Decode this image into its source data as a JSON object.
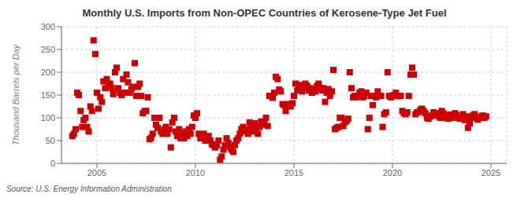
{
  "chart_data": {
    "type": "scatter",
    "title": "Monthly U.S. Imports from Non-OPEC Countries of Kerosene-Type Jet Fuel",
    "ylabel": "Thousand Barrels per Day",
    "annotation": "Source: U.S. Energy Information Administration",
    "color": "#cc0000",
    "marker": "square",
    "grid": true,
    "xlim": [
      2003.2,
      2025.8
    ],
    "ylim": [
      0,
      300
    ],
    "xticks": [
      2005,
      2010,
      2015,
      2020,
      2025
    ],
    "yticks": [
      0,
      50,
      100,
      150,
      200,
      250,
      300
    ],
    "x": [
      2003.75,
      2003.83,
      2003.92,
      2004.0,
      2004.08,
      2004.17,
      2004.25,
      2004.33,
      2004.42,
      2004.5,
      2004.58,
      2004.67,
      2004.75,
      2004.83,
      2004.92,
      2005.0,
      2005.08,
      2005.17,
      2005.25,
      2005.33,
      2005.42,
      2005.5,
      2005.58,
      2005.67,
      2005.75,
      2005.83,
      2005.92,
      2006.0,
      2006.08,
      2006.17,
      2006.25,
      2006.33,
      2006.42,
      2006.5,
      2006.58,
      2006.67,
      2006.75,
      2006.83,
      2006.92,
      2007.0,
      2007.08,
      2007.17,
      2007.25,
      2007.33,
      2007.42,
      2007.5,
      2007.58,
      2007.67,
      2007.75,
      2007.83,
      2007.92,
      2008.0,
      2008.08,
      2008.17,
      2008.25,
      2008.33,
      2008.42,
      2008.5,
      2008.58,
      2008.67,
      2008.75,
      2008.83,
      2008.92,
      2009.0,
      2009.08,
      2009.17,
      2009.25,
      2009.33,
      2009.42,
      2009.5,
      2009.58,
      2009.67,
      2009.75,
      2009.83,
      2009.92,
      2010.0,
      2010.08,
      2010.17,
      2010.25,
      2010.33,
      2010.42,
      2010.5,
      2010.58,
      2010.67,
      2010.75,
      2010.83,
      2010.92,
      2011.0,
      2011.08,
      2011.17,
      2011.25,
      2011.33,
      2011.42,
      2011.5,
      2011.58,
      2011.67,
      2011.75,
      2011.83,
      2011.92,
      2012.0,
      2012.08,
      2012.17,
      2012.25,
      2012.33,
      2012.42,
      2012.5,
      2012.58,
      2012.67,
      2012.75,
      2012.83,
      2012.92,
      2013.0,
      2013.08,
      2013.17,
      2013.25,
      2013.33,
      2013.42,
      2013.5,
      2013.58,
      2013.67,
      2013.75,
      2013.83,
      2013.92,
      2014.0,
      2014.08,
      2014.17,
      2014.25,
      2014.33,
      2014.42,
      2014.5,
      2014.58,
      2014.67,
      2014.75,
      2014.83,
      2014.92,
      2015.0,
      2015.08,
      2015.17,
      2015.25,
      2015.33,
      2015.42,
      2015.5,
      2015.58,
      2015.67,
      2015.75,
      2015.83,
      2015.92,
      2016.0,
      2016.08,
      2016.17,
      2016.25,
      2016.33,
      2016.42,
      2016.5,
      2016.58,
      2016.67,
      2016.75,
      2016.83,
      2016.92,
      2017.0,
      2017.08,
      2017.17,
      2017.25,
      2017.33,
      2017.42,
      2017.5,
      2017.58,
      2017.67,
      2017.75,
      2017.83,
      2017.92,
      2018.0,
      2018.08,
      2018.17,
      2018.25,
      2018.33,
      2018.42,
      2018.5,
      2018.58,
      2018.67,
      2018.75,
      2018.83,
      2018.92,
      2019.0,
      2019.08,
      2019.17,
      2019.25,
      2019.33,
      2019.42,
      2019.5,
      2019.58,
      2019.67,
      2019.75,
      2019.83,
      2019.92,
      2020.0,
      2020.08,
      2020.17,
      2020.25,
      2020.33,
      2020.42,
      2020.5,
      2020.58,
      2020.67,
      2020.75,
      2020.83,
      2020.92,
      2021.0,
      2021.08,
      2021.17,
      2021.25,
      2021.33,
      2021.42,
      2021.5,
      2021.58,
      2021.67,
      2021.75,
      2021.83,
      2021.92,
      2022.0,
      2022.08,
      2022.17,
      2022.25,
      2022.33,
      2022.42,
      2022.5,
      2022.58,
      2022.67,
      2022.75,
      2022.83,
      2022.92,
      2023.0,
      2023.08,
      2023.17,
      2023.25,
      2023.33,
      2023.42,
      2023.5,
      2023.58,
      2023.67,
      2023.75,
      2023.83,
      2023.92,
      2024.0,
      2024.08,
      2024.17,
      2024.25,
      2024.33,
      2024.42,
      2024.5,
      2024.58,
      2024.67,
      2024.75
    ],
    "values": [
      60,
      65,
      75,
      155,
      150,
      115,
      80,
      95,
      100,
      80,
      70,
      125,
      115,
      270,
      240,
      155,
      120,
      145,
      135,
      180,
      165,
      185,
      170,
      175,
      165,
      152,
      200,
      210,
      165,
      155,
      150,
      185,
      155,
      195,
      178,
      155,
      163,
      168,
      220,
      148,
      168,
      175,
      148,
      110,
      115,
      115,
      145,
      53,
      56,
      65,
      100,
      85,
      78,
      100,
      70,
      65,
      75,
      80,
      65,
      75,
      35,
      90,
      100,
      70,
      60,
      75,
      55,
      65,
      55,
      70,
      60,
      75,
      65,
      80,
      105,
      100,
      110,
      65,
      55,
      60,
      65,
      50,
      50,
      60,
      50,
      42,
      40,
      35,
      40,
      50,
      8,
      15,
      30,
      40,
      55,
      45,
      35,
      30,
      25,
      40,
      50,
      55,
      65,
      75,
      80,
      70,
      75,
      65,
      90,
      80,
      70,
      88,
      78,
      65,
      80,
      92,
      85,
      90,
      100,
      82,
      148,
      148,
      144,
      155,
      190,
      185,
      162,
      158,
      130,
      128,
      115,
      130,
      128,
      125,
      132,
      148,
      175,
      160,
      162,
      172,
      158,
      165,
      175,
      170,
      160,
      165,
      155,
      162,
      158,
      170,
      175,
      165,
      160,
      165,
      135,
      155,
      163,
      148,
      158,
      205,
      75,
      78,
      80,
      100,
      100,
      82,
      90,
      93,
      98,
      200,
      165,
      145,
      148,
      145,
      148,
      155,
      158,
      145,
      148,
      155,
      75,
      100,
      148,
      128,
      148,
      145,
      158,
      148,
      148,
      80,
      108,
      112,
      200,
      148,
      145,
      148,
      150,
      155,
      148,
      148,
      148,
      115,
      110,
      108,
      112,
      148,
      195,
      210,
      195,
      108,
      112,
      113,
      118,
      120,
      115,
      110,
      100,
      98,
      103,
      105,
      112,
      108,
      110,
      104,
      100,
      115,
      110,
      100,
      105,
      98,
      107,
      100,
      107,
      110,
      106,
      100,
      98,
      100,
      108,
      95,
      103,
      78,
      88,
      100,
      105,
      108,
      100,
      96,
      100,
      103,
      105,
      100,
      103
    ]
  }
}
